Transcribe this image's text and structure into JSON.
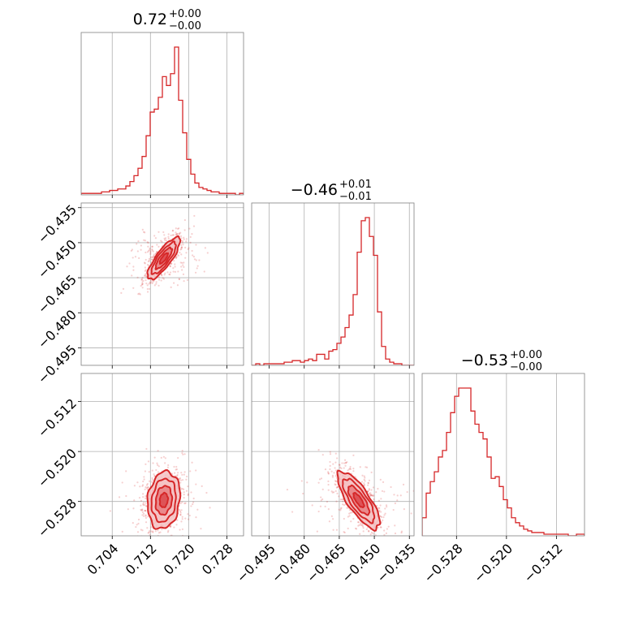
{
  "chart_data": {
    "type": "scatter",
    "subtype": "corner-plot",
    "colors": {
      "primary": "#d62728",
      "fill_light": "#f4c2c3",
      "fill_mid": "#e87f81",
      "grid": "#b0b0b0",
      "frame": "#808080"
    },
    "grid": true,
    "parameters": [
      {
        "title": {
          "main": "0.72",
          "plus": "+0.00",
          "minus": "−0.00"
        },
        "range": [
          0.6975,
          0.7315
        ],
        "ticks": [
          0.704,
          0.712,
          0.72,
          0.728
        ],
        "tick_labels": [
          "0.704",
          "0.712",
          "0.720",
          "0.728"
        ],
        "mean": 0.7148,
        "sd": 0.0017
      },
      {
        "title": {
          "main": "−0.46",
          "plus": "+0.01",
          "minus": "−0.01"
        },
        "range": [
          -0.5025,
          -0.433
        ],
        "ticks": [
          -0.495,
          -0.48,
          -0.465,
          -0.45,
          -0.435
        ],
        "tick_labels": [
          "−0.495",
          "−0.480",
          "−0.465",
          "−0.450",
          "−0.435"
        ],
        "mean": -0.4567,
        "sd": 0.0045
      },
      {
        "title": {
          "main": "−0.53",
          "plus": "+0.00",
          "minus": "−0.00"
        },
        "range": [
          -0.5335,
          -0.5075
        ],
        "ticks": [
          -0.528,
          -0.52,
          -0.512
        ],
        "tick_labels": [
          "−0.528",
          "−0.520",
          "−0.512"
        ],
        "mean": -0.5278,
        "sd": 0.0023
      }
    ],
    "histograms": [
      {
        "param": 0,
        "bin_range": [
          0.6975,
          0.7315
        ],
        "counts": [
          1,
          1,
          1,
          1,
          1,
          2,
          2,
          3,
          3,
          4,
          4,
          6,
          9,
          13,
          18,
          26,
          40,
          56,
          58,
          66,
          80,
          74,
          82,
          100,
          64,
          42,
          24,
          14,
          8,
          5,
          4,
          3,
          2,
          2,
          1,
          1,
          1,
          1,
          0,
          1
        ]
      },
      {
        "param": 1,
        "bin_range": [
          -0.5025,
          -0.433
        ],
        "counts": [
          0,
          1,
          0,
          1,
          1,
          1,
          1,
          1,
          2,
          2,
          3,
          3,
          2,
          3,
          4,
          3,
          7,
          7,
          4,
          9,
          10,
          14,
          18,
          24,
          32,
          45,
          72,
          92,
          94,
          82,
          70,
          34,
          12,
          4,
          2,
          1,
          1,
          0,
          0,
          0
        ]
      },
      {
        "param": 2,
        "bin_range": [
          -0.5335,
          -0.5075
        ],
        "counts": [
          11,
          26,
          33,
          39,
          48,
          52,
          63,
          75,
          85,
          90,
          90,
          90,
          76,
          68,
          63,
          59,
          48,
          35,
          36,
          30,
          22,
          17,
          11,
          8,
          6,
          4,
          3,
          2,
          2,
          2,
          1,
          1,
          1,
          1,
          1,
          1,
          0,
          0,
          1,
          1
        ]
      }
    ],
    "pairs": [
      {
        "x_param": 0,
        "y_param": 1,
        "correlation": 0.82
      },
      {
        "x_param": 0,
        "y_param": 2,
        "correlation": 0.15
      },
      {
        "x_param": 1,
        "y_param": 2,
        "correlation": -0.78
      }
    ]
  }
}
